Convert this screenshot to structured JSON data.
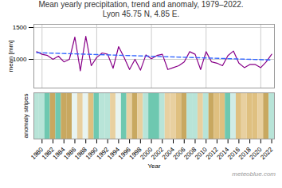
{
  "chart_data": [
    {
      "type": "line",
      "title": "Mean yearly precipitation, trend and anomaly, 1979–2022.",
      "subtitle": "Lyon 45.75 N, 4.85 E.",
      "x": [
        1979,
        1980,
        1981,
        1982,
        1983,
        1984,
        1985,
        1986,
        1987,
        1988,
        1989,
        1990,
        1991,
        1992,
        1993,
        1994,
        1995,
        1996,
        1997,
        1998,
        1999,
        2000,
        2001,
        2002,
        2003,
        2004,
        2005,
        2006,
        2007,
        2008,
        2009,
        2010,
        2011,
        2012,
        2013,
        2014,
        2015,
        2016,
        2017,
        2018,
        2019,
        2020,
        2021,
        2022
      ],
      "xlim": [
        1978.5,
        2022.5
      ],
      "xticks": [
        1980,
        1990,
        2000,
        2010,
        2020
      ],
      "ylabel": "mean [mm]",
      "ylim": [
        550,
        1550
      ],
      "yticks": [
        1000,
        1500
      ],
      "grid": true,
      "tick_labels": "y",
      "series": [
        {
          "color": "#880088",
          "values": [
            1120,
            1080,
            1060,
            1000,
            1050,
            960,
            1000,
            1350,
            820,
            1360,
            900,
            1030,
            1100,
            1080,
            860,
            1200,
            1030,
            840,
            1000,
            830,
            1070,
            1010,
            1060,
            1080,
            840,
            870,
            900,
            960,
            1120,
            1080,
            840,
            1120,
            960,
            940,
            900,
            1060,
            1130,
            940,
            870,
            920,
            920,
            870,
            960,
            1080
          ]
        },
        {
          "color": "#3366ff",
          "line_style": "dashed",
          "x": [
            1979,
            2022
          ],
          "values": [
            1105,
            990
          ]
        }
      ]
    },
    {
      "type": "bar",
      "x": [
        1979,
        1980,
        1981,
        1982,
        1983,
        1984,
        1985,
        1986,
        1987,
        1988,
        1989,
        1990,
        1991,
        1992,
        1993,
        1994,
        1995,
        1996,
        1997,
        1998,
        1999,
        2000,
        2001,
        2002,
        2003,
        2004,
        2005,
        2006,
        2007,
        2008,
        2009,
        2010,
        2011,
        2012,
        2013,
        2014,
        2015,
        2016,
        2017,
        2018,
        2019,
        2020,
        2021,
        2022
      ],
      "values": [
        1,
        1,
        1,
        1,
        1,
        1,
        1,
        1,
        1,
        1,
        1,
        1,
        1,
        1,
        1,
        1,
        1,
        1,
        1,
        1,
        1,
        1,
        1,
        1,
        1,
        1,
        1,
        1,
        1,
        1,
        1,
        1,
        1,
        1,
        1,
        1,
        1,
        1,
        1,
        1,
        1,
        1,
        1,
        1
      ],
      "colors": [
        "#b8e4d8",
        "#b8e4d8",
        "#6ec8b0",
        "#c8a860",
        "#6ec8b0",
        "#c8a860",
        "#c8a860",
        "#e8f4f1",
        "#e8d0a0",
        "#e8f4f1",
        "#dfc080",
        "#6ec8b0",
        "#b8e4d8",
        "#b8e4d8",
        "#e8d0a0",
        "#e8f4f1",
        "#6ec8b0",
        "#e8d0a0",
        "#c8a860",
        "#e8d0a0",
        "#b8e4d8",
        "#6ec8b0",
        "#6ec8b0",
        "#b8e4d8",
        "#e8d0a0",
        "#e8d0a0",
        "#dfc080",
        "#c8a860",
        "#b8e4d8",
        "#b8e4d8",
        "#e8d0a0",
        "#b8e4d8",
        "#c8a860",
        "#dfc080",
        "#dfc080",
        "#6ec8b0",
        "#d0ece6",
        "#dfc080",
        "#e8d0a0",
        "#dfc080",
        "#dfc080",
        "#e8d0a0",
        "#c8a860",
        "#b8e4d8"
      ],
      "xlabel": "Year",
      "ylabel": "anomaly stripes",
      "xticks": [
        1980,
        1982,
        1984,
        1986,
        1988,
        1990,
        1992,
        1994,
        1996,
        1998,
        2000,
        2002,
        2004,
        2006,
        2008,
        2010,
        2012,
        2014,
        2016,
        2018,
        2020,
        2022
      ],
      "ylim": [
        0,
        1
      ],
      "yticks": [],
      "tick_labels": "x",
      "annotations": [
        "meteoblue.com"
      ]
    }
  ]
}
